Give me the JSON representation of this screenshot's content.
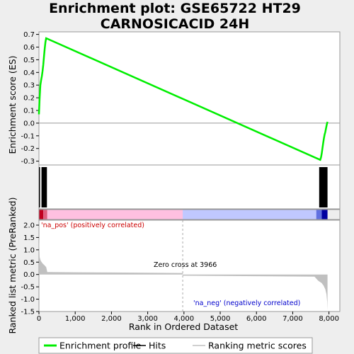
{
  "chart_data": {
    "title_line1": "Enrichment plot: GSE65722 HT29",
    "title_line2": "CARNOSICACID 24H",
    "type": "line",
    "top_panel": {
      "ylabel": "Enrichment score (ES)",
      "ylim": [
        -0.33,
        0.72
      ],
      "yticks": [
        0.7,
        0.6,
        0.5,
        0.4,
        0.3,
        0.2,
        0.1,
        0.0,
        -0.1,
        -0.2,
        -0.3
      ],
      "ytick_labels": [
        "0.7",
        "0.6",
        "0.5",
        "0.4",
        "0.3",
        "0.2",
        "0.1",
        "0.0",
        "-0.1",
        "-0.2",
        "-0.3"
      ],
      "enrichment_profile": {
        "name": "Enrichment profile",
        "color": "#00ee00",
        "x": [
          0,
          20,
          40,
          60,
          80,
          100,
          120,
          140,
          160,
          180,
          200,
          7760,
          7780,
          7800,
          7820,
          7840,
          7860,
          7880,
          7900,
          7920,
          7940,
          7960
        ],
        "y": [
          0.07,
          0.2,
          0.3,
          0.34,
          0.37,
          0.41,
          0.46,
          0.53,
          0.59,
          0.64,
          0.67,
          -0.29,
          -0.27,
          -0.24,
          -0.2,
          -0.16,
          -0.12,
          -0.09,
          -0.07,
          -0.04,
          -0.01,
          0.01
        ]
      }
    },
    "hits_panel": {
      "name": "Hits",
      "hit_ranges": [
        [
          0,
          30
        ],
        [
          70,
          220
        ],
        [
          7730,
          7960
        ]
      ]
    },
    "color_bar": {
      "zero_cross_rank": 3966,
      "segments": [
        {
          "from": 0,
          "to": 120,
          "color": "#c00020"
        },
        {
          "from": 120,
          "to": 230,
          "color": "#e06080"
        },
        {
          "from": 230,
          "to": 3966,
          "color": "#ffc0e0"
        },
        {
          "from": 3966,
          "to": 7650,
          "color": "#c0c8ff"
        },
        {
          "from": 7650,
          "to": 7800,
          "color": "#6070e0"
        },
        {
          "from": 7800,
          "to": 7960,
          "color": "#0000a0"
        }
      ]
    },
    "bottom_panel": {
      "ylabel": "Ranked list metric (PreRanked)",
      "ylim": [
        -1.5,
        2.2
      ],
      "yticks": [
        2.0,
        1.5,
        1.0,
        0.5,
        0.0,
        -0.5,
        -1.0,
        -1.5
      ],
      "ytick_labels": [
        "2.0",
        "1.5",
        "1.0",
        "0.5",
        "0.0",
        "-0.5",
        "-1.0",
        "-1.5"
      ],
      "series": {
        "name": "Ranking metric scores",
        "color": "#c0c0c0",
        "x": [
          0,
          20,
          50,
          100,
          150,
          200,
          230,
          1000,
          2000,
          3000,
          3966,
          3970,
          5000,
          6000,
          7000,
          7600,
          7700,
          7800,
          7850,
          7900,
          7930,
          7950,
          7960
        ],
        "y": [
          1.6,
          0.7,
          0.55,
          0.45,
          0.38,
          0.3,
          0.1,
          0.09,
          0.08,
          0.07,
          0.06,
          -0.05,
          -0.06,
          -0.07,
          -0.08,
          -0.09,
          -0.25,
          -0.35,
          -0.45,
          -0.6,
          -0.8,
          -1.1,
          -1.45
        ]
      },
      "annotations": {
        "pos_label": "'na_pos' (positively correlated)",
        "neg_label": "'na_neg' (negatively correlated)",
        "zero_cross_label": "Zero cross at 3966",
        "pos_color": "#cc0000",
        "neg_color": "#0000cc"
      }
    },
    "x_axis": {
      "xlabel": "Rank in Ordered Dataset",
      "xlim": [
        0,
        8300
      ],
      "xticks": [
        0,
        1000,
        2000,
        3000,
        4000,
        5000,
        6000,
        7000,
        8000
      ],
      "xtick_labels": [
        "0",
        "1,000",
        "2,000",
        "3,000",
        "4,000",
        "5,000",
        "6,000",
        "7,000",
        "8,000"
      ]
    },
    "legend": {
      "placement": "bottom",
      "items": [
        {
          "label": "Enrichment profile",
          "color": "#00ee00",
          "kind": "thick-line"
        },
        {
          "label": "Hits",
          "color": "#000000",
          "kind": "line"
        },
        {
          "label": "Ranking metric scores",
          "color": "#c0c0c0",
          "kind": "line"
        }
      ]
    }
  }
}
